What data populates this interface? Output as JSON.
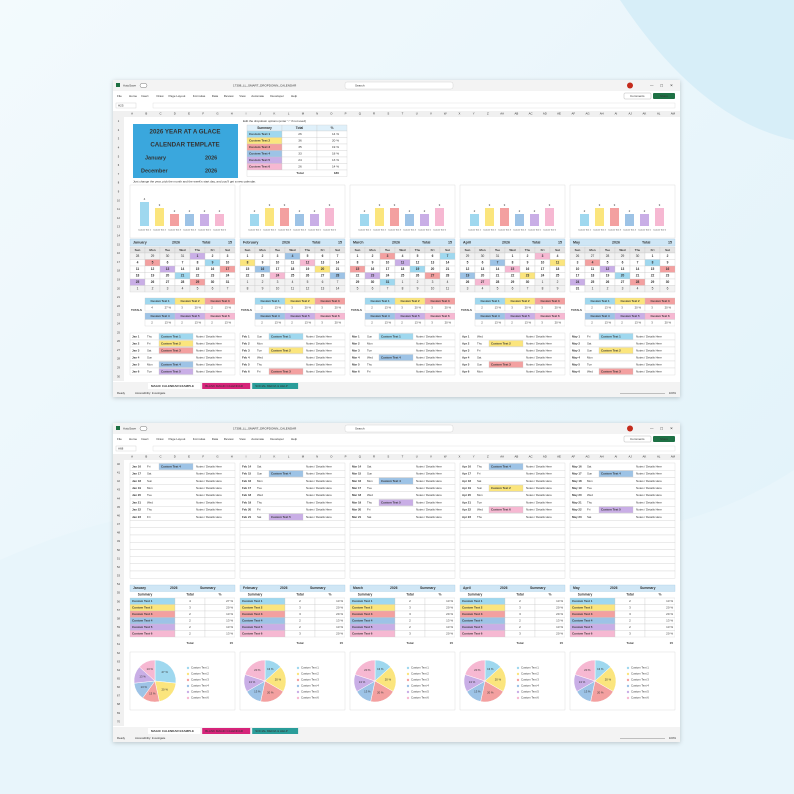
{
  "app": {
    "autosave": "AutoSave",
    "filename": "17308_LL_SMART_DROPDOWN_CALENDAR",
    "search": "Search",
    "menu": [
      "File",
      "Home",
      "Insert",
      "Draw",
      "Page Layout",
      "Formulas",
      "Data",
      "Review",
      "View",
      "Automate",
      "Developer",
      "Help"
    ],
    "comments": "Comments",
    "share": "Share",
    "columns": [
      "A",
      "B",
      "C",
      "D",
      "E",
      "F",
      "G",
      "H",
      "I",
      "J",
      "K",
      "L",
      "M",
      "N",
      "O",
      "P",
      "Q",
      "R",
      "S",
      "T",
      "U",
      "V",
      "W",
      "X",
      "Y",
      "Z",
      "AA",
      "AB",
      "AC",
      "AD",
      "AE",
      "AF",
      "AG",
      "AH",
      "AI",
      "AJ",
      "AK",
      "AL",
      "AM"
    ],
    "tabs": [
      "MAGIC CALENDAR EXAMPLE",
      "BLANK MAGIC CALENDAR",
      "SOCIAL MEDIA & HELP"
    ],
    "status": "Ready",
    "accessibility": "Accessibility: Investigate",
    "zoom": "100%",
    "weekdays": [
      "Sun",
      "Mon",
      "Tue",
      "Wed",
      "Thu",
      "Fri",
      "Sat"
    ],
    "tag_colors": [
      "#9fd8ef",
      "#fbe57d",
      "#f3a0a0",
      "#9dc3e6",
      "#c9aee6",
      "#f6b8d2"
    ]
  },
  "top_sheet": {
    "name_box": "H25",
    "rows": [
      1,
      2,
      3,
      4,
      5,
      6,
      7,
      8,
      9,
      10,
      11,
      12,
      13,
      14,
      15,
      16,
      17,
      18,
      19,
      20,
      21,
      22,
      23,
      24,
      25,
      26,
      27,
      28,
      29,
      30
    ],
    "title_block": {
      "line1": "2026 YEAR AT A GLACE",
      "line2": "CALENDAR TEMPLATE",
      "start_month": "January",
      "start_year": "2026",
      "end_month": "December",
      "end_year": "2026"
    },
    "note1": "Edit the dropdown options (enter \"-\" if not used)",
    "note2": "Just change the year, pick the month and the week's start day, and you'll get a new calendar.",
    "summary": {
      "headers": [
        "Summary",
        "Total",
        "%"
      ],
      "names": [
        "Custom Text 1",
        "Custom Text 2",
        "Custom Text 3",
        "Custom Text 4",
        "Custom Text 5",
        "Custom Text 6"
      ],
      "totals": [
        26,
        36,
        35,
        33,
        24,
        26
      ],
      "percents": [
        "14 %",
        "20 %",
        "19 %",
        "18 %",
        "13 %",
        "14 %"
      ],
      "total_label": "Total",
      "total": 180
    },
    "totals_label": "TOTALS",
    "total_label": "Total"
  },
  "bottom_sheet": {
    "name_box": "A68",
    "rows": [
      40,
      41,
      42,
      43,
      44,
      45,
      46,
      47,
      48,
      49,
      50,
      51,
      52,
      53,
      54,
      55,
      56,
      57,
      58,
      59,
      60,
      61,
      62,
      63,
      64,
      65,
      66,
      67,
      68,
      69,
      70
    ],
    "summary_label": "Summary"
  },
  "months": [
    {
      "name": "January",
      "year": "2026",
      "total": 15,
      "weeks": [
        [
          28,
          29,
          30,
          31,
          1,
          2,
          3
        ],
        [
          4,
          5,
          6,
          7,
          8,
          9,
          10
        ],
        [
          11,
          12,
          13,
          14,
          15,
          16,
          17
        ],
        [
          18,
          19,
          20,
          21,
          22,
          23,
          24
        ],
        [
          25,
          26,
          27,
          28,
          29,
          30,
          31
        ],
        [
          1,
          2,
          3,
          4,
          5,
          6,
          7
        ]
      ],
      "values": [
        4,
        3,
        2,
        2,
        2,
        2
      ],
      "percents": [
        "27 %",
        "20 %",
        "13 %",
        "13 %",
        "13 %",
        "13 %"
      ],
      "top_entries": [
        {
          "d": "Jan 1",
          "w": "Thu",
          "t": "Custom Text 1",
          "n": "Notes / Details Here"
        },
        {
          "d": "Jan 2",
          "w": "Fri",
          "t": "Custom Text 2",
          "n": "Notes / Details Here"
        },
        {
          "d": "Jan 3",
          "w": "Sat",
          "t": "Custom Text 3",
          "n": "Notes / Details Here"
        },
        {
          "d": "Jan 4",
          "w": "Sun",
          "n": "Notes / Details Here"
        },
        {
          "d": "Jan 5",
          "w": "Mon",
          "t": "Custom Text 4",
          "n": "Notes / Details Here"
        },
        {
          "d": "Jan 6",
          "w": "Tue",
          "t": "Custom Text 5",
          "n": "Notes / Details Here"
        }
      ],
      "bottom_entries": [
        {
          "d": "Jan 16",
          "w": "Fri",
          "t": "Custom Text 4",
          "n": "Notes / Details Here"
        },
        {
          "d": "Jan 17",
          "w": "Sat",
          "n": "Notes / Details Here"
        },
        {
          "d": "Jan 18",
          "w": "Sun",
          "n": "Notes / Details Here"
        },
        {
          "d": "Jan 19",
          "w": "Mon",
          "n": "Notes / Details Here"
        },
        {
          "d": "Jan 20",
          "w": "Tue",
          "n": "Notes / Details Here"
        },
        {
          "d": "Jan 21",
          "w": "Wed",
          "n": "Notes / Details Here"
        },
        {
          "d": "Jan 22",
          "w": "Thu",
          "n": "Notes / Details Here"
        },
        {
          "d": "Jan 23",
          "w": "Fri",
          "n": "Notes / Details Here"
        }
      ]
    },
    {
      "name": "February",
      "year": "2026",
      "total": 15,
      "weeks": [
        [
          1,
          2,
          3,
          4,
          5,
          6,
          7
        ],
        [
          8,
          9,
          10,
          11,
          12,
          13,
          14
        ],
        [
          15,
          16,
          17,
          18,
          19,
          20,
          21
        ],
        [
          22,
          23,
          24,
          25,
          26,
          27,
          28
        ],
        [
          1,
          2,
          3,
          4,
          5,
          6,
          7
        ],
        [
          8,
          9,
          10,
          11,
          12,
          13,
          14
        ]
      ],
      "values": [
        2,
        3,
        3,
        2,
        2,
        3
      ],
      "percents": [
        "13 %",
        "20 %",
        "20 %",
        "13 %",
        "13 %",
        "20 %"
      ],
      "top_entries": [
        {
          "d": "Feb 1",
          "w": "Sun",
          "t": "Custom Text 1",
          "n": "Notes / Details Here"
        },
        {
          "d": "Feb 2",
          "w": "Mon",
          "n": "Notes / Details Here"
        },
        {
          "d": "Feb 3",
          "w": "Tue",
          "t": "Custom Text 2",
          "n": "Notes / Details Here"
        },
        {
          "d": "Feb 4",
          "w": "Wed",
          "n": "Notes / Details Here"
        },
        {
          "d": "Feb 5",
          "w": "Thu",
          "n": "Notes / Details Here"
        },
        {
          "d": "Feb 6",
          "w": "Fri",
          "t": "Custom Text 3",
          "n": "Notes / Details Here"
        }
      ],
      "bottom_entries": [
        {
          "d": "Feb 14",
          "w": "Sat",
          "n": "Notes / Details Here"
        },
        {
          "d": "Feb 15",
          "w": "Sun",
          "t": "Custom Text 4",
          "n": "Notes / Details Here"
        },
        {
          "d": "Feb 16",
          "w": "Mon",
          "n": "Notes / Details Here"
        },
        {
          "d": "Feb 17",
          "w": "Tue",
          "n": "Notes / Details Here"
        },
        {
          "d": "Feb 18",
          "w": "Wed",
          "n": "Notes / Details Here"
        },
        {
          "d": "Feb 19",
          "w": "Thu",
          "n": "Notes / Details Here"
        },
        {
          "d": "Feb 20",
          "w": "Fri",
          "n": "Notes / Details Here"
        },
        {
          "d": "Feb 21",
          "w": "Sat",
          "t": "Custom Text 5",
          "n": "Notes / Details Here"
        }
      ]
    },
    {
      "name": "March",
      "year": "2026",
      "total": 15,
      "weeks": [
        [
          1,
          2,
          3,
          4,
          5,
          6,
          7
        ],
        [
          8,
          9,
          10,
          11,
          12,
          13,
          14
        ],
        [
          15,
          16,
          17,
          18,
          19,
          20,
          21
        ],
        [
          22,
          23,
          24,
          25,
          26,
          27,
          28
        ],
        [
          29,
          30,
          31,
          1,
          2,
          3,
          4
        ],
        [
          5,
          6,
          7,
          8,
          9,
          10,
          11
        ]
      ],
      "values": [
        2,
        3,
        3,
        2,
        2,
        3
      ],
      "percents": [
        "13 %",
        "20 %",
        "20 %",
        "13 %",
        "13 %",
        "20 %"
      ],
      "top_entries": [
        {
          "d": "Mar 1",
          "w": "Sun",
          "t": "Custom Text 1",
          "n": "Notes / Details Here"
        },
        {
          "d": "Mar 2",
          "w": "Mon",
          "n": "Notes / Details Here"
        },
        {
          "d": "Mar 3",
          "w": "Tue",
          "n": "Notes / Details Here"
        },
        {
          "d": "Mar 4",
          "w": "Wed",
          "t": "Custom Text 4",
          "n": "Notes / Details Here"
        },
        {
          "d": "Mar 5",
          "w": "Thu",
          "n": "Notes / Details Here"
        },
        {
          "d": "Mar 6",
          "w": "Fri",
          "n": "Notes / Details Here"
        }
      ],
      "bottom_entries": [
        {
          "d": "Mar 14",
          "w": "Sat",
          "n": "Notes / Details Here"
        },
        {
          "d": "Mar 15",
          "w": "Sun",
          "n": "Notes / Details Here"
        },
        {
          "d": "Mar 16",
          "w": "Mon",
          "t": "Custom Text 4",
          "n": "Notes / Details Here"
        },
        {
          "d": "Mar 17",
          "w": "Tue",
          "n": "Notes / Details Here"
        },
        {
          "d": "Mar 18",
          "w": "Wed",
          "n": "Notes / Details Here"
        },
        {
          "d": "Mar 19",
          "w": "Thu",
          "t": "Custom Text 5",
          "n": "Notes / Details Here"
        },
        {
          "d": "Mar 20",
          "w": "Fri",
          "n": "Notes / Details Here"
        },
        {
          "d": "Mar 21",
          "w": "Sat",
          "n": "Notes / Details Here"
        }
      ]
    },
    {
      "name": "April",
      "year": "2026",
      "total": 15,
      "weeks": [
        [
          29,
          30,
          31,
          1,
          2,
          3,
          4
        ],
        [
          5,
          6,
          7,
          8,
          9,
          10,
          11
        ],
        [
          12,
          13,
          14,
          15,
          16,
          17,
          18
        ],
        [
          19,
          20,
          21,
          22,
          23,
          24,
          25
        ],
        [
          26,
          27,
          28,
          29,
          30,
          1,
          2
        ],
        [
          3,
          4,
          5,
          6,
          7,
          8,
          9
        ]
      ],
      "values": [
        2,
        3,
        3,
        2,
        2,
        3
      ],
      "percents": [
        "13 %",
        "20 %",
        "20 %",
        "13 %",
        "13 %",
        "20 %"
      ],
      "top_entries": [
        {
          "d": "Apr 1",
          "w": "Wed",
          "n": "Notes / Details Here"
        },
        {
          "d": "Apr 2",
          "w": "Thu",
          "t": "Custom Text 2",
          "n": "Notes / Details Here"
        },
        {
          "d": "Apr 3",
          "w": "Fri",
          "n": "Notes / Details Here"
        },
        {
          "d": "Apr 4",
          "w": "Sat",
          "n": "Notes / Details Here"
        },
        {
          "d": "Apr 5",
          "w": "Sun",
          "t": "Custom Text 3",
          "n": "Notes / Details Here"
        },
        {
          "d": "Apr 6",
          "w": "Mon",
          "n": "Notes / Details Here"
        }
      ],
      "bottom_entries": [
        {
          "d": "Apr 16",
          "w": "Thu",
          "t": "Custom Text 4",
          "n": "Notes / Details Here"
        },
        {
          "d": "Apr 17",
          "w": "Fri",
          "n": "Notes / Details Here"
        },
        {
          "d": "Apr 18",
          "w": "Sat",
          "n": "Notes / Details Here"
        },
        {
          "d": "Apr 19",
          "w": "Sun",
          "t": "Custom Text 2",
          "n": "Notes / Details Here"
        },
        {
          "d": "Apr 20",
          "w": "Mon",
          "n": "Notes / Details Here"
        },
        {
          "d": "Apr 21",
          "w": "Tue",
          "n": "Notes / Details Here"
        },
        {
          "d": "Apr 22",
          "w": "Wed",
          "t": "Custom Text 6",
          "n": "Notes / Details Here"
        },
        {
          "d": "Apr 23",
          "w": "Thu",
          "n": "Notes / Details Here"
        }
      ]
    },
    {
      "name": "May",
      "year": "2026",
      "total": 15,
      "weeks": [
        [
          26,
          27,
          28,
          29,
          30,
          1,
          2
        ],
        [
          3,
          4,
          5,
          6,
          7,
          8,
          9
        ],
        [
          10,
          11,
          12,
          13,
          14,
          15,
          16
        ],
        [
          17,
          18,
          19,
          20,
          21,
          22,
          23
        ],
        [
          24,
          25,
          26,
          27,
          28,
          29,
          30
        ],
        [
          31,
          1,
          2,
          3,
          4,
          5,
          6
        ]
      ],
      "values": [
        2,
        3,
        3,
        2,
        2,
        3
      ],
      "percents": [
        "13 %",
        "20 %",
        "20 %",
        "13 %",
        "13 %",
        "20 %"
      ],
      "top_entries": [
        {
          "d": "May 1",
          "w": "Fri",
          "t": "Custom Text 1",
          "n": "Notes / Details Here"
        },
        {
          "d": "May 2",
          "w": "Sat",
          "n": "Notes / Details Here"
        },
        {
          "d": "May 3",
          "w": "Sun",
          "t": "Custom Text 2",
          "n": "Notes / Details Here"
        },
        {
          "d": "May 4",
          "w": "Mon",
          "n": "Notes / Details Here"
        },
        {
          "d": "May 5",
          "w": "Tue",
          "n": "Notes / Details Here"
        },
        {
          "d": "May 6",
          "w": "Wed",
          "t": "Custom Text 3",
          "n": "Notes / Details Here"
        }
      ],
      "bottom_entries": [
        {
          "d": "May 16",
          "w": "Sat",
          "n": "Notes / Details Here"
        },
        {
          "d": "May 17",
          "w": "Sun",
          "t": "Custom Text 4",
          "n": "Notes / Details Here"
        },
        {
          "d": "May 18",
          "w": "Mon",
          "n": "Notes / Details Here"
        },
        {
          "d": "May 19",
          "w": "Tue",
          "n": "Notes / Details Here"
        },
        {
          "d": "May 20",
          "w": "Wed",
          "n": "Notes / Details Here"
        },
        {
          "d": "May 21",
          "w": "Thu",
          "n": "Notes / Details Here"
        },
        {
          "d": "May 22",
          "w": "Fri",
          "t": "Custom Text 5",
          "n": "Notes / Details Here"
        },
        {
          "d": "May 23",
          "w": "Sat",
          "n": "Notes / Details Here"
        }
      ]
    }
  ]
}
